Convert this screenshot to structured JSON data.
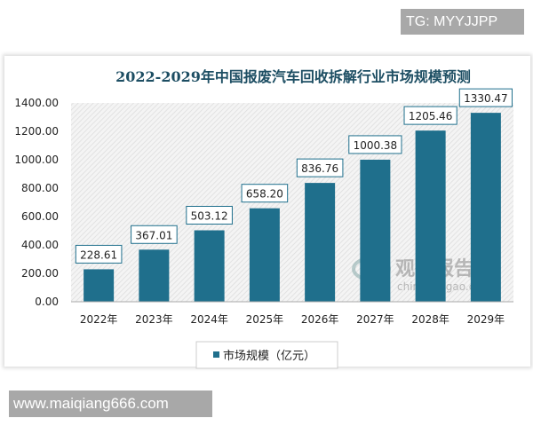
{
  "watermark_top": "TG: MYYJJPP",
  "watermark_bottom": "www.maiqiang666.com",
  "logo": {
    "cn": "观研报告网",
    "en": "chinabaogao.com"
  },
  "colors": {
    "bar": "#1f6f8c",
    "title": "#1d4e63"
  },
  "chart_data": {
    "type": "bar",
    "title": "2022-2029年中国报废汽车回收拆解行业市场规模预测",
    "categories": [
      "2022年",
      "2023年",
      "2024年",
      "2025年",
      "2026年",
      "2027年",
      "2028年",
      "2029年"
    ],
    "series": [
      {
        "name": "市场规模（亿元）",
        "values": [
          228.61,
          367.01,
          503.12,
          658.2,
          836.76,
          1000.38,
          1205.46,
          1330.47
        ]
      }
    ],
    "data_labels": [
      "228.61",
      "367.01",
      "503.12",
      "658.20",
      "836.76",
      "1000.38",
      "1205.46",
      "1330.47"
    ],
    "yticks": [
      "0.00",
      "200.00",
      "400.00",
      "600.00",
      "800.00",
      "1000.00",
      "1200.00",
      "1400.00"
    ],
    "ylim": [
      0,
      1400
    ],
    "grid": false,
    "legend": "bottom"
  }
}
